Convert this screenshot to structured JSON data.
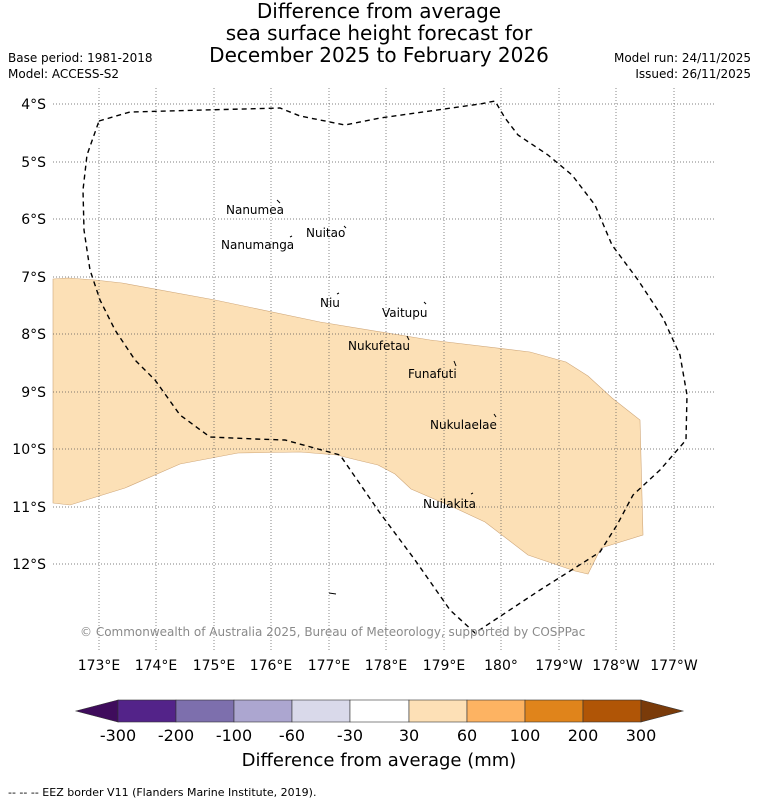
{
  "title": {
    "line1": "Difference from average",
    "line2": "sea surface height forecast for",
    "line3": "December 2025 to February 2026"
  },
  "meta": {
    "base_period": "Base period: 1981-2018",
    "model": "Model: ACCESS-S2",
    "model_run": "Model run: 24/11/2025",
    "issued": "Issued: 26/11/2025"
  },
  "map": {
    "lat_labels": [
      "4°S",
      "5°S",
      "6°S",
      "7°S",
      "8°S",
      "9°S",
      "10°S",
      "11°S",
      "12°S"
    ],
    "lon_labels": [
      "173°E",
      "174°E",
      "175°E",
      "176°E",
      "177°E",
      "178°E",
      "179°E",
      "180°",
      "179°W",
      "178°W",
      "177°W"
    ],
    "places": [
      "Nanumea",
      "Nuitao",
      "Nanumanga",
      "Niu",
      "Vaitupu",
      "Nukufetau",
      "Funafuti",
      "Nukulaelae",
      "Nuilakita"
    ],
    "copyright": "© Commonwealth of Australia 2025, Bureau of Meteorology, supported by COSPPac",
    "anomaly_fill_category": "30 to 60 mm",
    "colors": {
      "anomaly_fill": "#fce0b6",
      "grid": "#555555",
      "eez_border": "#000000"
    }
  },
  "colorbar": {
    "ticks": [
      "-300",
      "-200",
      "-100",
      "-60",
      "-30",
      "30",
      "60",
      "100",
      "200",
      "300"
    ],
    "colors": [
      "#3f0c5c",
      "#532389",
      "#7d6fad",
      "#aca6d0",
      "#d9d9ea",
      "#ffffff",
      "#fde0b6",
      "#fdb362",
      "#e0841b",
      "#b05506",
      "#7a3b0a"
    ],
    "title": "Difference from average (mm)"
  },
  "footer": "--  --  -- EEZ border V11 (Flanders Marine Institute, 2019)."
}
